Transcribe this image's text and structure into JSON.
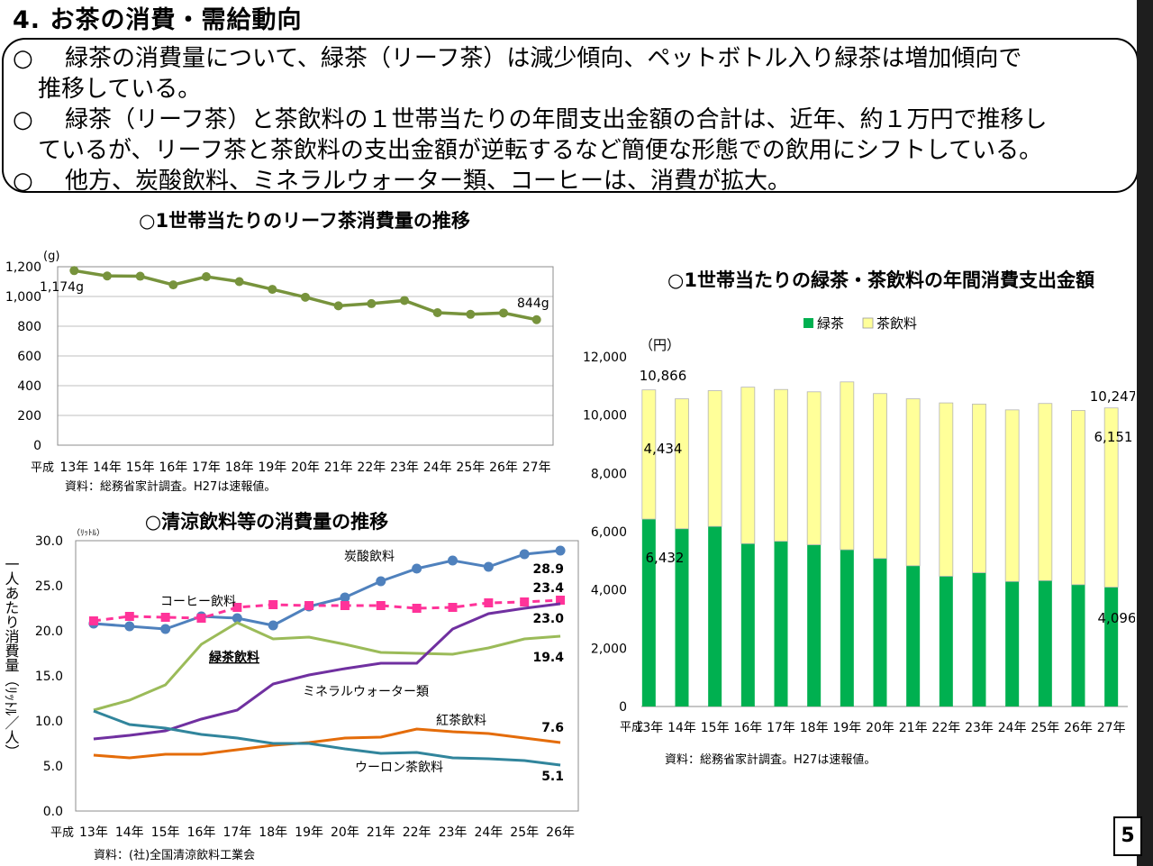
{
  "header": {
    "title": "4. お茶の消費・需給動向"
  },
  "summary": {
    "marker": "○",
    "bullets": [
      {
        "line1": "緑茶の消費量について、緑茶（リーフ茶）は減少傾向、ペットボトル入り緑茶は増加傾向で",
        "line2": "推移している。"
      },
      {
        "line1": "緑茶（リーフ茶）と茶飲料の１世帯当たりの年間支出金額の合計は、近年、約１万円で推移し",
        "line2": "ているが、リーフ茶と茶飲料の支出金額が逆転するなど簡便な形態での飲用にシフトしている。"
      },
      {
        "line1": "他方、炭酸飲料、ミネラルウォーター類、コーヒーは、消費が拡大。",
        "line2": ""
      }
    ]
  },
  "page_number": "5",
  "colors": {
    "leaf_line": "#77933c",
    "green_bar": "#00b050",
    "teadrink_bar": "#ffff99",
    "carbonated": "#4f81bd",
    "coffee": "#ff3399",
    "green_drink": "#9bbb59",
    "mineral": "#7030a0",
    "black_tea": "#e46c0a",
    "oolong": "#31859c"
  },
  "chart_data": [
    {
      "type": "line",
      "title": "○1世帯当たりのリーフ茶消費量の推移",
      "unit": "(g)",
      "era": "平成",
      "categories": [
        "13年",
        "14年",
        "15年",
        "16年",
        "17年",
        "18年",
        "19年",
        "20年",
        "21年",
        "22年",
        "23年",
        "24年",
        "25年",
        "26年",
        "27年"
      ],
      "series": [
        {
          "values": [
            1174,
            1138,
            1136,
            1078,
            1133,
            1100,
            1048,
            995,
            937,
            952,
            973,
            891,
            880,
            889,
            844
          ]
        }
      ],
      "ylim": [
        0,
        1200
      ],
      "yticks": [
        "0",
        "200",
        "400",
        "600",
        "800",
        "1,000",
        "1,200"
      ],
      "annotations": {
        "first": "1,174g",
        "last": "844g"
      },
      "source": "資料：総務省家計調査。H27は速報値。",
      "grid": true
    },
    {
      "type": "bar",
      "stacked": true,
      "title": "○1世帯当たりの緑茶・茶飲料の年間消費支出金額",
      "unit": "（円）",
      "era": "平成",
      "categories": [
        "13年",
        "14年",
        "15年",
        "16年",
        "17年",
        "18年",
        "19年",
        "20年",
        "21年",
        "22年",
        "23年",
        "24年",
        "25年",
        "26年",
        "27年"
      ],
      "series": [
        {
          "name": "緑茶",
          "values": [
            6432,
            6100,
            6180,
            5590,
            5670,
            5550,
            5380,
            5080,
            4830,
            4470,
            4590,
            4290,
            4320,
            4180,
            4096
          ]
        },
        {
          "name": "茶飲料",
          "values": [
            4434,
            4460,
            4660,
            5370,
            5210,
            5250,
            5760,
            5660,
            5730,
            5950,
            5790,
            5890,
            6080,
            5980,
            6151
          ]
        }
      ],
      "ylim": [
        0,
        12000
      ],
      "yticks": [
        "0",
        "2,000",
        "4,000",
        "6,000",
        "8,000",
        "10,000",
        "12,000"
      ],
      "labels": {
        "total_first": "10,866",
        "total_last": "10,247",
        "tea_first": "4,434",
        "tea_last": "6,151",
        "green_first": "6,432",
        "green_last": "4,096"
      },
      "legend": "top",
      "source": "資料：総務省家計調査。H27は速報値。"
    },
    {
      "type": "line",
      "title": "○清涼飲料等の消費量の推移",
      "ylabel": "一人あたり消費量（ﾘｯﾄﾙ／人）",
      "unit": "（ﾘｯﾄﾙ）",
      "era": "平成",
      "categories": [
        "13年",
        "14年",
        "15年",
        "16年",
        "17年",
        "18年",
        "19年",
        "20年",
        "21年",
        "22年",
        "23年",
        "24年",
        "25年",
        "26年"
      ],
      "ylim": [
        0,
        30
      ],
      "yticks": [
        "0.0",
        "5.0",
        "10.0",
        "15.0",
        "20.0",
        "25.0",
        "30.0"
      ],
      "series": [
        {
          "name": "炭酸飲料",
          "values": [
            20.8,
            20.5,
            20.2,
            21.6,
            21.4,
            20.6,
            22.7,
            23.7,
            25.5,
            26.9,
            27.8,
            27.1,
            28.5,
            28.9
          ],
          "end_label": "28.9"
        },
        {
          "name": "コーヒー飲料",
          "values": [
            21.1,
            21.6,
            21.5,
            21.4,
            22.6,
            22.9,
            22.8,
            22.8,
            22.8,
            22.5,
            22.6,
            23.1,
            23.2,
            23.4
          ],
          "end_label": "23.4"
        },
        {
          "name": "緑茶飲料",
          "values": [
            11.2,
            12.3,
            14.0,
            18.5,
            20.9,
            19.1,
            19.3,
            18.5,
            17.6,
            17.5,
            17.4,
            18.1,
            19.1,
            19.4
          ],
          "end_label": "19.4"
        },
        {
          "name": "ミネラルウォーター類",
          "values": [
            8.0,
            8.4,
            8.9,
            10.2,
            11.2,
            14.1,
            15.1,
            15.8,
            16.4,
            16.4,
            20.2,
            21.9,
            22.5,
            23.0
          ],
          "end_label": "23.0"
        },
        {
          "name": "紅茶飲料",
          "values": [
            6.2,
            5.9,
            6.3,
            6.3,
            6.8,
            7.3,
            7.6,
            8.1,
            8.2,
            9.1,
            8.8,
            8.6,
            8.1,
            7.6
          ],
          "end_label": "7.6"
        },
        {
          "name": "ウーロン茶飲料",
          "values": [
            11.1,
            9.6,
            9.2,
            8.5,
            8.1,
            7.5,
            7.5,
            6.9,
            6.4,
            6.5,
            5.9,
            5.8,
            5.6,
            5.1
          ],
          "end_label": "5.1"
        }
      ],
      "source": "資料：(社)全国清涼飲料工業会",
      "grid": false
    }
  ]
}
